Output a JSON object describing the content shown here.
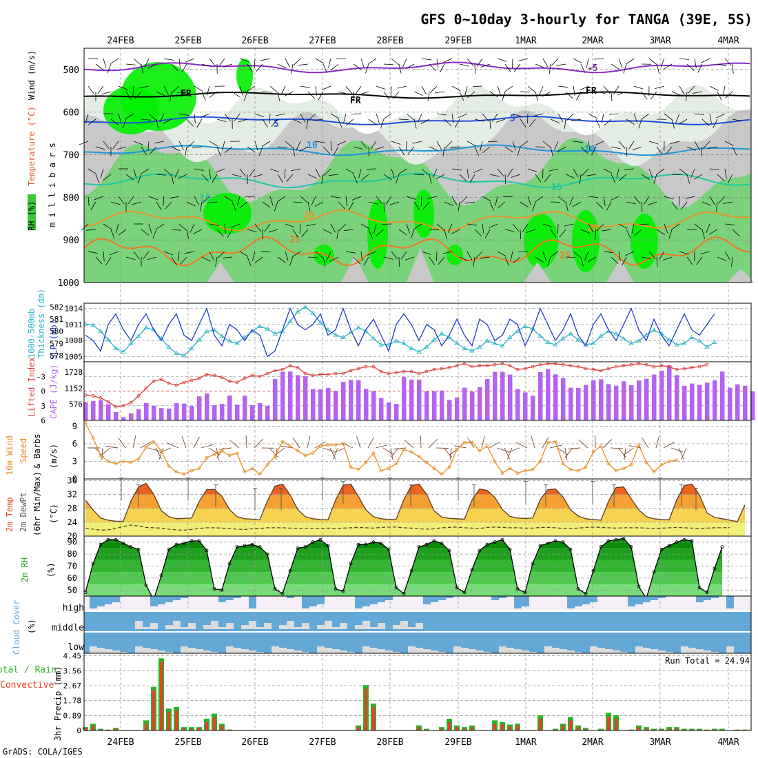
{
  "title": "GFS 0~10day 3-hourly for TANGA (39E, 5S)",
  "footer": "GrADS: COLA/IGES",
  "dates": [
    "24FEB",
    "25FEB",
    "26FEB",
    "27FEB",
    "28FEB",
    "29FEB",
    "1MAR",
    "2MAR",
    "3MAR",
    "4MAR"
  ],
  "colors": {
    "rh_dark": "#3cc83c",
    "rh_light": "#7ad27a",
    "rh_grey": "#c8c8c8",
    "slp": "#1e3cc8",
    "thickness": "#28b4c8",
    "lifted": "#dc3c3c",
    "cape": "#b464f0",
    "wind10m": "#e68c1e",
    "temp": "#e1461e",
    "precip_total": "#28b428",
    "precip_conv": "#f03c28",
    "cloud": "#64a8d8"
  },
  "panels": {
    "upper": {
      "labels": {
        "line1": "RH (%)",
        "line2": "Temperature (°C)",
        "line3": "Wind (m/s)",
        "line4": "m i l l i b a r s"
      },
      "levels": [
        "500",
        "600",
        "700",
        "800",
        "900",
        "1000"
      ],
      "contour_labels": [
        "FR",
        "5",
        "10",
        "15",
        "20",
        "25",
        "-5"
      ]
    },
    "slp": {
      "label_a": "1000-500mb",
      "label_b": "Thickness (dm)",
      "label_c": "SLP (mb)",
      "left_ticks": [
        "582",
        "581",
        "580",
        "579",
        "578"
      ],
      "right_ticks": [
        "1014",
        "1011",
        "1008",
        "1005"
      ]
    },
    "cape": {
      "label_a": "Lifted Index",
      "label_b": "CAPE (J/kg)",
      "left_ticks": [
        "-3",
        "0",
        "3",
        "6"
      ],
      "right_ticks": [
        "1728",
        "1152",
        "576"
      ]
    },
    "wind": {
      "label_a": "10m Wind",
      "label_b": "Speed",
      "label_c": "& Barbs",
      "unit": "(m/s)",
      "ticks": [
        "9",
        "6",
        "3",
        "0"
      ]
    },
    "temp": {
      "label_a": "2m Temp",
      "label_b": "2m DewPt",
      "label_c": "(6hr Min/Max)",
      "unit": "(°C)",
      "ticks": [
        "36",
        "32",
        "28",
        "24",
        "20"
      ]
    },
    "rh": {
      "label": "2m RH",
      "unit": "(%)",
      "ticks": [
        "90",
        "80",
        "70",
        "60",
        "50"
      ]
    },
    "cloud": {
      "label": "Cloud Cover",
      "unit": "(%)",
      "levels": [
        "high",
        "middle",
        "low"
      ]
    },
    "precip": {
      "label_a": "Total / Rain",
      "label_b": "Convective",
      "label_c": "3hr Precip (mm)",
      "ticks": [
        "4.45",
        "3.56",
        "2.67",
        "1.78",
        "0.89",
        "0"
      ],
      "run_total": "Run Total = 24.94"
    }
  },
  "chart_data": [
    {
      "type": "line",
      "title": "SLP (mb)",
      "ylim": [
        1004,
        1015
      ],
      "step_hours": 3,
      "series": [
        {
          "name": "SLP (mb)",
          "values": [
            1009,
            1008,
            1006,
            1011,
            1013,
            1010,
            1008,
            1011,
            1013,
            1010,
            1008,
            1011,
            1013,
            1009,
            1008,
            1011,
            1014,
            1009,
            1007,
            1011,
            1010,
            1008,
            1010,
            1009,
            1005,
            1006,
            1010,
            1014,
            1011,
            1010,
            1011,
            1013,
            1009,
            1010,
            1014,
            1010,
            1007,
            1010,
            1012,
            1009,
            1006,
            1011,
            1013,
            1011,
            1008,
            1011,
            1010,
            1007,
            1009,
            1012,
            1009,
            1007,
            1012,
            1011,
            1008,
            1009,
            1012,
            1011,
            1007,
            1010,
            1014,
            1011,
            1008,
            1010,
            1013,
            1009,
            1007,
            1011,
            1013,
            1010,
            1008,
            1011,
            1014,
            1010,
            1008,
            1012,
            1009,
            1007,
            1010,
            1013,
            1010,
            1009,
            1011,
            1013
          ]
        }
      ]
    },
    {
      "type": "line",
      "title": "1000-500mb Thickness (dm)",
      "ylim": [
        577.5,
        582.3
      ],
      "step_hours": 3,
      "series": [
        {
          "name": "Thickness",
          "values": [
            580.6,
            580.5,
            580.0,
            579.3,
            578.6,
            578.3,
            579.0,
            579.6,
            580.3,
            580.1,
            579.4,
            578.7,
            578.2,
            578.0,
            578.6,
            579.3,
            580.0,
            580.1,
            579.6,
            579.2,
            579.0,
            579.5,
            580.0,
            580.4,
            580.2,
            579.8,
            580.0,
            580.8,
            581.6,
            582.0,
            581.5,
            580.7,
            580.1,
            579.7,
            579.5,
            579.9,
            580.3,
            580.0,
            579.4,
            578.9,
            578.9,
            579.2,
            579.0,
            578.6,
            578.3,
            578.7,
            579.3,
            579.8,
            579.5,
            579.0,
            578.6,
            578.4,
            578.7,
            579.2,
            579.0,
            578.8,
            579.5,
            580.0,
            580.4,
            580.2,
            579.6,
            579.1,
            578.9,
            579.4,
            579.8,
            579.3,
            578.9,
            579.0,
            579.6,
            580.0,
            579.8,
            579.4,
            579.0,
            579.2,
            579.7,
            580.1,
            579.8,
            579.3,
            578.9,
            579.0,
            579.5,
            579.2,
            578.7,
            579.1
          ]
        }
      ]
    },
    {
      "type": "bar",
      "title": "CAPE (J/kg)",
      "ylim": [
        0,
        2100
      ],
      "step_hours": 3,
      "series": [
        {
          "name": "CAPE",
          "values": [
            650,
            690,
            720,
            580,
            300,
            110,
            250,
            400,
            620,
            520,
            440,
            420,
            620,
            600,
            520,
            860,
            960,
            540,
            590,
            890,
            560,
            890,
            540,
            620,
            520,
            1480,
            1740,
            1750,
            1620,
            1580,
            1120,
            1110,
            1160,
            1060,
            1380,
            1450,
            1440,
            1130,
            1040,
            800,
            640,
            590,
            1560,
            1460,
            1460,
            1040,
            1040,
            1070,
            730,
            820,
            1170,
            1030,
            1190,
            1480,
            1740,
            1740,
            1640,
            1120,
            1000,
            880,
            1730,
            1840,
            1650,
            1520,
            1170,
            1160,
            1270,
            1440,
            1470,
            1300,
            1240,
            1400,
            1260,
            1430,
            1490,
            1640,
            1780,
            1970,
            1620,
            1240,
            1320,
            1270,
            1350,
            1440,
            1750,
            1170,
            1290,
            1240,
            1040
          ]
        }
      ]
    },
    {
      "type": "line",
      "title": "Lifted Index",
      "ylim": [
        6,
        -6
      ],
      "step_hours": 3,
      "series": [
        {
          "name": "Lifted Index",
          "values": [
            0.8,
            1.0,
            1.4,
            2.2,
            3.2,
            3.0,
            2.4,
            1.0,
            -0.6,
            -2.0,
            -2.4,
            -1.6,
            -1.2,
            -1.8,
            -2.2,
            -2.6,
            -3.4,
            -3.2,
            -2.8,
            -2.0,
            -1.8,
            -2.6,
            -3.2,
            -3.0,
            -3.6,
            -4.2,
            -4.4,
            -5.2,
            -4.8,
            -3.6,
            -3.2,
            -3.4,
            -3.4,
            -3.6,
            -3.6,
            -4.2,
            -4.6,
            -5.0,
            -5.0,
            -4.0,
            -3.6,
            -3.8,
            -4.0,
            -4.0,
            -3.6,
            -4.0,
            -4.4,
            -4.6,
            -4.8,
            -5.2,
            -5.6,
            -5.0,
            -5.2,
            -5.2,
            -5.4,
            -5.6,
            -5.2,
            -4.4,
            -4.6,
            -5.0,
            -5.4,
            -5.6,
            -5.6,
            -5.4,
            -5.2,
            -5.0,
            -4.6,
            -4.4,
            -4.2,
            -4.6,
            -5.0,
            -5.2,
            -5.4,
            -5.6,
            -5.4,
            -5.0,
            -5.2,
            -5.0,
            -4.4,
            -4.6,
            -4.8,
            -5.0,
            -5.4
          ]
        }
      ]
    },
    {
      "type": "line",
      "title": "10m Wind Speed (m/s)",
      "ylim": [
        0,
        10
      ],
      "step_hours": 3,
      "series": [
        {
          "name": "Speed",
          "values": [
            9.6,
            7.0,
            4.0,
            3.0,
            2.6,
            3.0,
            2.8,
            3.4,
            5.4,
            6.4,
            4.8,
            2.2,
            1.2,
            0.8,
            1.4,
            1.8,
            3.6,
            4.2,
            4.8,
            4.0,
            4.4,
            1.2,
            1.8,
            0.8,
            2.4,
            3.8,
            6.4,
            5.6,
            4.8,
            4.0,
            4.4,
            5.6,
            5.8,
            5.8,
            6.0,
            2.0,
            1.6,
            2.8,
            4.4,
            1.4,
            1.8,
            2.6,
            5.0,
            4.6,
            3.8,
            2.8,
            1.8,
            0.8,
            2.0,
            5.0,
            6.2,
            6.2,
            4.8,
            5.6,
            3.0,
            1.0,
            1.8,
            1.0,
            1.4,
            1.6,
            3.0,
            6.2,
            6.4,
            2.6,
            1.6,
            1.4,
            2.0,
            4.6,
            5.6,
            2.6,
            1.4,
            1.8,
            2.4,
            5.8,
            2.8,
            1.2,
            2.4,
            3.0,
            3.2
          ]
        }
      ]
    },
    {
      "type": "area",
      "title": "2m Temp (°C)",
      "ylim": [
        20,
        36.5
      ],
      "step_hours": 3,
      "series": [
        {
          "name": "2m Temp",
          "values": [
            30.4,
            27.6,
            25.2,
            24.6,
            24.3,
            24.3,
            30.1,
            34.2,
            35.2,
            32.1,
            27.4,
            25.6,
            25.0,
            25.1,
            25.2,
            30.0,
            33.4,
            33.5,
            31.5,
            27.7,
            25.6,
            25.0,
            24.9,
            24.7,
            30.1,
            34.4,
            35.0,
            31.9,
            27.7,
            25.6,
            25.0,
            24.8,
            24.7,
            30.4,
            34.7,
            35.0,
            31.5,
            27.6,
            25.6,
            25.0,
            24.8,
            24.9,
            30.5,
            34.6,
            35.0,
            32.1,
            27.3,
            25.5,
            25.1,
            25.0,
            24.9,
            30.4,
            33.6,
            33.2,
            31.2,
            27.7,
            25.7,
            25.2,
            25.1,
            25.2,
            30.5,
            33.4,
            33.6,
            31.3,
            27.6,
            25.8,
            25.0,
            24.8,
            24.6,
            30.0,
            34.0,
            34.2,
            30.8,
            27.6,
            25.6,
            25.0,
            24.8,
            24.7,
            30.4,
            34.6,
            35.0,
            31.9,
            26.7,
            25.4,
            25.0,
            24.6,
            24.2,
            29.0
          ]
        },
        {
          "name": "2m DewPt",
          "values": [
            22.2,
            22.0,
            21.7,
            21.8,
            22.2,
            22.8,
            23.2,
            22.9,
            22.5,
            22.4,
            22.3,
            22.0,
            21.8,
            21.7,
            21.9,
            22.2,
            22.4,
            22.4,
            22.3,
            22.2,
            22.0,
            21.9,
            22.1,
            22.2,
            22.4,
            22.4,
            22.4,
            22.3,
            22.2,
            22.1,
            22.1,
            22.2,
            22.3,
            22.2,
            22.3,
            22.4,
            22.5,
            22.4,
            22.3,
            22.5,
            22.6,
            22.6,
            22.4,
            22.3,
            22.1,
            22.0,
            22.1,
            22.4,
            22.5,
            22.6,
            22.4,
            22.3,
            22.2,
            22.5,
            22.6,
            22.5,
            22.4,
            22.4,
            22.3,
            22.3,
            22.5,
            22.5,
            22.4,
            22.2,
            22.2,
            22.3,
            22.5,
            22.6,
            22.5,
            22.4,
            22.3,
            22.4,
            22.4,
            22.4,
            22.3,
            22.2,
            22.3,
            22.4,
            22.5,
            22.4,
            22.3,
            22.2,
            22.3,
            22.4,
            22.4,
            22.5
          ]
        }
      ]
    },
    {
      "type": "area",
      "title": "2m RH (%)",
      "ylim": [
        45,
        95
      ],
      "step_hours": 3,
      "series": [
        {
          "name": "2m RH",
          "values": [
            48,
            72,
            88,
            92,
            92,
            89,
            86,
            84,
            54,
            42,
            62,
            84,
            88,
            89,
            91,
            91,
            83,
            51,
            50,
            72,
            86,
            87,
            88,
            86,
            80,
            51,
            47,
            66,
            85,
            86,
            90,
            92,
            87,
            51,
            49,
            72,
            88,
            88,
            90,
            89,
            84,
            52,
            47,
            66,
            86,
            88,
            91,
            89,
            83,
            52,
            48,
            67,
            83,
            88,
            90,
            92,
            84,
            51,
            48,
            72,
            87,
            89,
            91,
            90,
            84,
            51,
            47,
            66,
            86,
            91,
            92,
            93,
            86,
            53,
            43,
            65,
            84,
            87,
            90,
            92,
            91,
            52,
            48,
            68,
            86
          ]
        }
      ]
    },
    {
      "type": "bar",
      "title": "3hr Precip (mm)",
      "ylim": [
        0,
        4.45
      ],
      "step_hours": 3,
      "series": [
        {
          "name": "Total",
          "values": [
            0.2,
            0.4,
            0.1,
            0.05,
            0.15,
            0,
            0,
            0,
            0.6,
            2.6,
            4.3,
            1.3,
            1.4,
            0.2,
            0.2,
            0.2,
            0.7,
            1.0,
            0.4,
            0.05,
            0,
            0,
            0,
            0,
            0,
            0,
            0,
            0,
            0,
            0,
            0,
            0,
            0,
            0,
            0,
            0,
            0.3,
            2.7,
            1.6,
            0,
            0,
            0,
            0,
            0,
            0.3,
            0.1,
            0,
            0.2,
            0.7,
            0.3,
            0.2,
            0.3,
            0,
            0,
            0.6,
            0.5,
            0.35,
            0.4,
            0,
            0,
            0.9,
            0,
            0.1,
            0.4,
            0.8,
            0.3,
            0.15,
            0,
            0.1,
            1.05,
            0.9,
            0,
            0.05,
            0.3,
            0.2,
            0.1,
            0.1,
            0.2,
            0.2,
            0.1,
            0.1,
            0.1,
            0.05,
            0.1,
            0.1,
            0,
            0.05,
            0.05,
            0
          ]
        },
        {
          "name": "Convective",
          "values": [
            0.15,
            0.3,
            0.05,
            0.05,
            0.1,
            0,
            0,
            0,
            0.4,
            2.4,
            4.1,
            1.1,
            1.2,
            0.1,
            0.1,
            0.15,
            0.5,
            0.8,
            0.3,
            0.05,
            0,
            0,
            0,
            0,
            0,
            0,
            0,
            0,
            0,
            0,
            0,
            0,
            0,
            0,
            0,
            0,
            0.2,
            2.5,
            1.4,
            0,
            0,
            0,
            0,
            0,
            0.2,
            0.05,
            0,
            0.1,
            0.5,
            0.2,
            0.1,
            0.2,
            0,
            0,
            0.4,
            0.35,
            0.25,
            0.3,
            0,
            0,
            0.7,
            0,
            0.05,
            0.3,
            0.6,
            0.2,
            0.1,
            0,
            0.05,
            0.8,
            0.7,
            0,
            0.05,
            0.2,
            0.1,
            0.05,
            0.05,
            0.1,
            0.1,
            0.05,
            0.05,
            0.05,
            0.05,
            0.05,
            0.05,
            0,
            0.05,
            0.05,
            0
          ]
        }
      ]
    }
  ]
}
